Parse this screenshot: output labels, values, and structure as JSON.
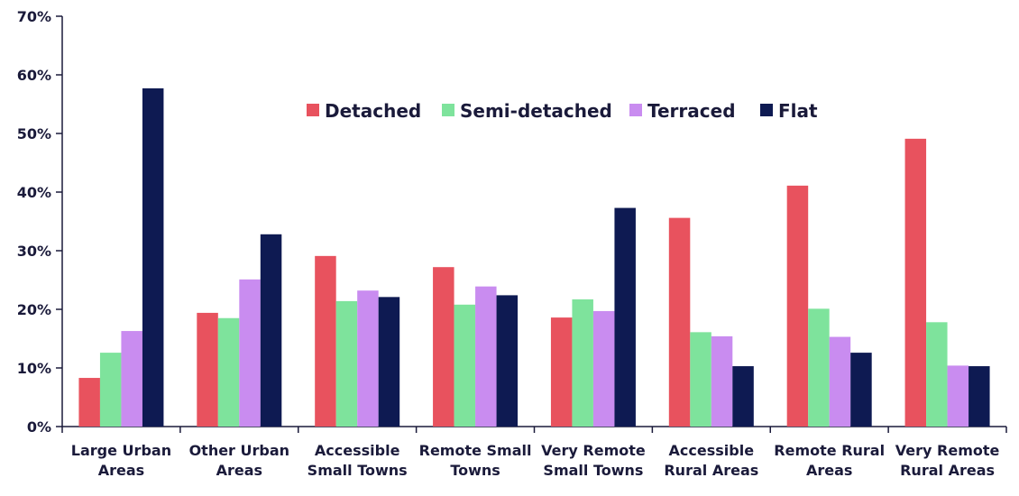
{
  "chart_data": {
    "type": "bar",
    "ylim": [
      0,
      70
    ],
    "y_ticks": [
      0,
      10,
      20,
      30,
      40,
      50,
      60,
      70
    ],
    "y_tick_labels": [
      "0%",
      "10%",
      "20%",
      "30%",
      "40%",
      "50%",
      "60%",
      "70%"
    ],
    "grid": false,
    "legend_position": "top-center",
    "categories": [
      [
        "Large Urban",
        "Areas"
      ],
      [
        "Other Urban",
        "Areas"
      ],
      [
        "Accessible",
        "Small Towns"
      ],
      [
        "Remote Small",
        "Towns"
      ],
      [
        "Very Remote",
        "Small Towns"
      ],
      [
        "Accessible",
        "Rural Areas"
      ],
      [
        "Remote Rural",
        "Areas"
      ],
      [
        "Very Remote",
        "Rural Areas"
      ]
    ],
    "series": [
      {
        "name": "Detached",
        "color": "#e8525e",
        "values": [
          8.3,
          19.4,
          29.1,
          27.2,
          18.6,
          35.6,
          41.1,
          49.1
        ]
      },
      {
        "name": "Semi-detached",
        "color": "#7ee39c",
        "values": [
          12.6,
          18.5,
          21.4,
          20.8,
          21.7,
          16.1,
          20.1,
          17.8
        ]
      },
      {
        "name": "Terraced",
        "color": "#c98cf0",
        "values": [
          16.3,
          25.1,
          23.2,
          23.9,
          19.7,
          15.4,
          15.3,
          10.4
        ]
      },
      {
        "name": "Flat",
        "color": "#0e1a52",
        "values": [
          57.7,
          32.8,
          22.1,
          22.4,
          37.3,
          10.3,
          12.6,
          10.3
        ]
      }
    ]
  }
}
